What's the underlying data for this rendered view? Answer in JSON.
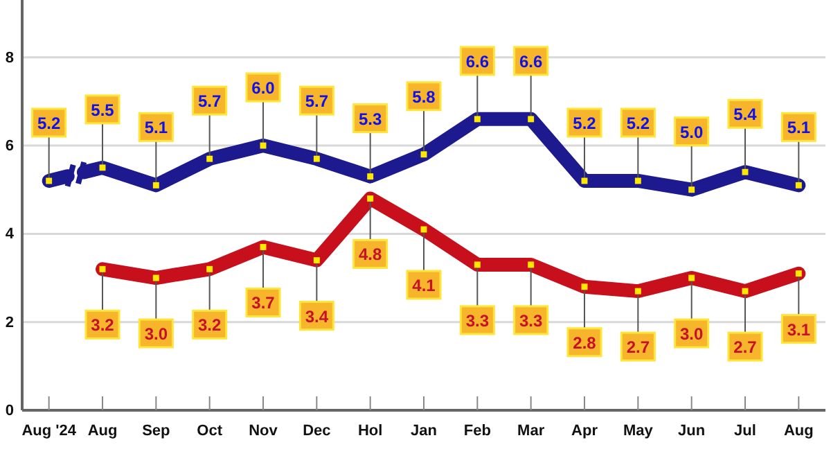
{
  "chart_data": {
    "type": "line",
    "categories": [
      "Aug '24",
      "Aug",
      "Sep",
      "Oct",
      "Nov",
      "Dec",
      "Hol",
      "Jan",
      "Feb",
      "Mar",
      "Apr",
      "May",
      "Jun",
      "Jul",
      "Aug"
    ],
    "series": [
      {
        "color": "#1c1a8e",
        "values": [
          5.2,
          5.5,
          5.1,
          5.7,
          6.0,
          5.7,
          5.3,
          5.8,
          6.6,
          6.6,
          5.2,
          5.2,
          5.0,
          5.4,
          5.1
        ],
        "value_labels": [
          "5.2",
          "5.5",
          "5.1",
          "5.7",
          "6.0",
          "5.7",
          "5.3",
          "5.8",
          "6.6",
          "6.6",
          "5.2",
          "5.2",
          "5.0",
          "5.4",
          "5.1"
        ]
      },
      {
        "color": "#c8101c",
        "values": [
          null,
          3.2,
          3.0,
          3.2,
          3.7,
          3.4,
          4.8,
          4.1,
          3.3,
          3.3,
          2.8,
          2.7,
          3.0,
          2.7,
          3.1
        ],
        "value_labels": [
          null,
          "3.2",
          "3.0",
          "3.2",
          "3.7",
          "3.4",
          "4.8",
          "4.1",
          "3.3",
          "3.3",
          "2.8",
          "2.7",
          "3.0",
          "2.7",
          "3.1"
        ]
      }
    ],
    "ylim": [
      0,
      9.3
    ],
    "yticks": [
      0,
      2,
      4,
      6,
      8
    ],
    "grid": "y",
    "marker": "square",
    "line_style": "solid"
  }
}
